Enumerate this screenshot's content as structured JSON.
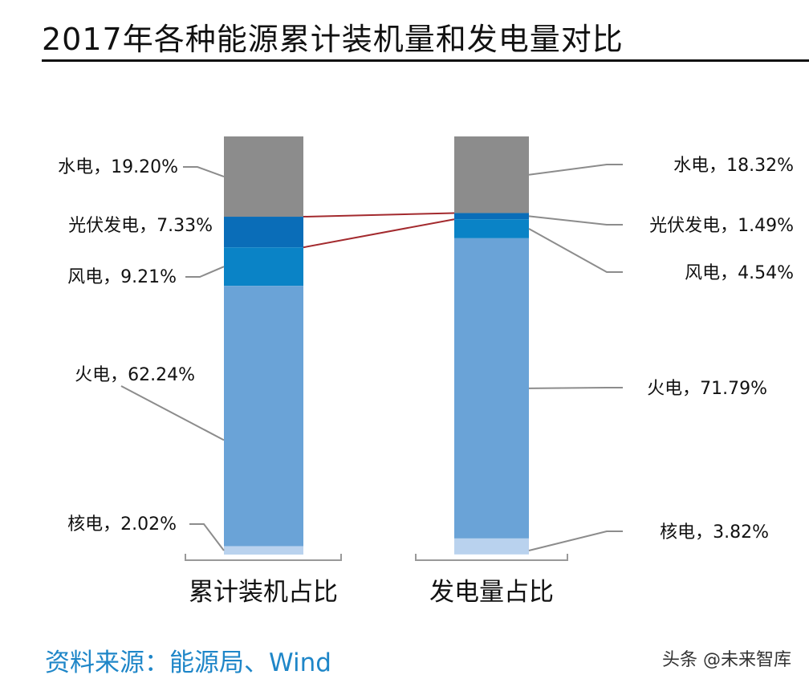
{
  "title": "2017年各种能源累计装机量和发电量对比",
  "source": "资料来源：能源局、Wind",
  "watermark": "头条 @未来智库",
  "colors": {
    "hydro": "#8c8c8c",
    "solar": "#0a6db8",
    "wind": "#0a83c6",
    "thermal": "#6aa3d7",
    "nuclear": "#b9d2ee",
    "connector": "#a32a2e",
    "leader": "#8c8c8c",
    "source_text": "#1e86c8"
  },
  "chart_data": {
    "type": "bar",
    "stacked": true,
    "unit": "%",
    "categories": [
      "累计装机占比",
      "发电量占比"
    ],
    "series": [
      {
        "name": "水电",
        "values": [
          19.2,
          18.32
        ],
        "labels": [
          "水电，19.20%",
          "水电，18.32%"
        ],
        "color": "#8c8c8c"
      },
      {
        "name": "光伏发电",
        "values": [
          7.33,
          1.49
        ],
        "labels": [
          "光伏发电，7.33%",
          "光伏发电，1.49%"
        ],
        "color": "#0a6db8"
      },
      {
        "name": "风电",
        "values": [
          9.21,
          4.54
        ],
        "labels": [
          "风电，9.21%",
          "风电，4.54%"
        ],
        "color": "#0a83c6"
      },
      {
        "name": "火电",
        "values": [
          62.24,
          71.79
        ],
        "labels": [
          "火电，62.24%",
          "火电，71.79%"
        ],
        "color": "#6aa3d7"
      },
      {
        "name": "核电",
        "values": [
          2.02,
          3.82
        ],
        "labels": [
          "核电，2.02%",
          "核电，3.82%"
        ],
        "color": "#b9d2ee"
      }
    ]
  }
}
